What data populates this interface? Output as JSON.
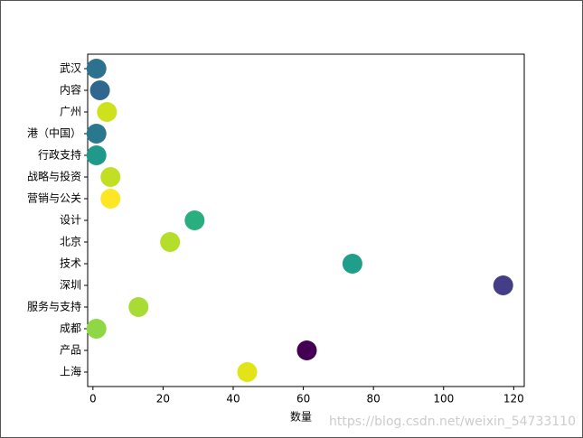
{
  "chart_data": {
    "type": "scatter",
    "categories": [
      "上海",
      "产品",
      "成都",
      "服务与支持",
      "深圳",
      "技术",
      "北京",
      "设计",
      "营销与公关",
      "战略与投资",
      "行政支持",
      "港（中国）",
      "广州",
      "内容",
      "武汉"
    ],
    "values": [
      44,
      61,
      1,
      13,
      117,
      74,
      22,
      29,
      5,
      5,
      1,
      1,
      4,
      2,
      1
    ],
    "colors": [
      "#e2e418",
      "#440154",
      "#8fd744",
      "#a8db34",
      "#433e85",
      "#1f9e89",
      "#b5de2b",
      "#29af7f",
      "#fde725",
      "#c2df23",
      "#1f9a8a",
      "#2a788e",
      "#cde11d",
      "#31668e",
      "#2c728e"
    ],
    "xlabel": "数量",
    "xlim": [
      -1.5,
      123
    ],
    "xticks": [
      0,
      20,
      40,
      60,
      80,
      100,
      120
    ],
    "watermark": "https://blog.csdn.net/weixin_54733110"
  }
}
